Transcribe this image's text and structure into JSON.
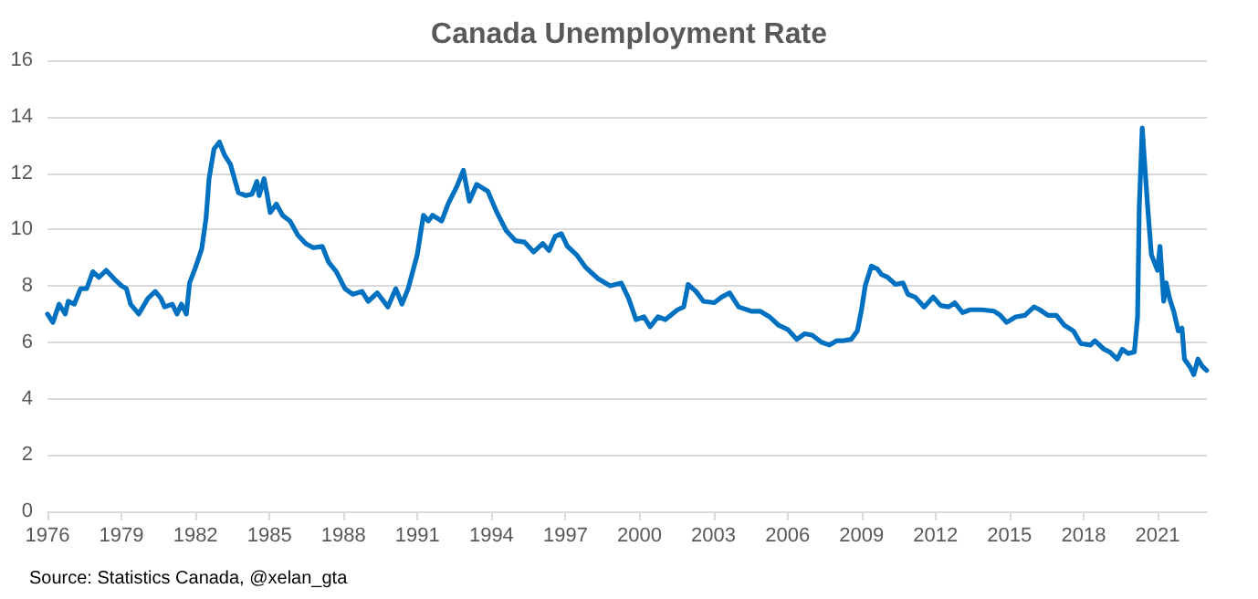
{
  "chart_data": {
    "type": "line",
    "title": "Canada Unemployment Rate",
    "annotations": [
      "Source: Statistics Canada, @xelan_gta"
    ],
    "x": [
      1976.0,
      1976.22,
      1976.47,
      1976.72,
      1976.84,
      1977.09,
      1977.34,
      1977.59,
      1977.84,
      1978.09,
      1978.38,
      1978.7,
      1979.0,
      1979.2,
      1979.37,
      1979.7,
      1980.07,
      1980.37,
      1980.6,
      1980.75,
      1981.06,
      1981.25,
      1981.43,
      1981.63,
      1981.76,
      1982.0,
      1982.25,
      1982.43,
      1982.55,
      1982.75,
      1982.97,
      1983.17,
      1983.42,
      1983.74,
      1984.04,
      1984.29,
      1984.49,
      1984.58,
      1984.78,
      1984.9,
      1985.03,
      1985.28,
      1985.53,
      1985.83,
      1986.15,
      1986.47,
      1986.77,
      1987.14,
      1987.39,
      1987.71,
      1988.06,
      1988.38,
      1988.75,
      1989.0,
      1989.37,
      1989.8,
      1990.12,
      1990.37,
      1990.62,
      1990.99,
      1991.24,
      1991.44,
      1991.61,
      1991.98,
      1992.24,
      1992.61,
      1992.86,
      1993.1,
      1993.4,
      1993.85,
      1994.22,
      1994.6,
      1994.97,
      1995.34,
      1995.71,
      1996.08,
      1996.33,
      1996.58,
      1996.83,
      1997.08,
      1997.45,
      1997.82,
      1998.32,
      1998.81,
      1999.26,
      1999.56,
      1999.86,
      2000.18,
      2000.43,
      2000.75,
      2001.05,
      2001.54,
      2001.79,
      2001.97,
      2002.29,
      2002.59,
      2003.03,
      2003.33,
      2003.65,
      2004.02,
      2004.52,
      2004.89,
      2005.27,
      2005.64,
      2006.01,
      2006.38,
      2006.7,
      2007.0,
      2007.37,
      2007.7,
      2007.99,
      2008.21,
      2008.58,
      2008.83,
      2009.0,
      2009.15,
      2009.4,
      2009.64,
      2009.81,
      2010.06,
      2010.38,
      2010.68,
      2010.88,
      2011.17,
      2011.54,
      2011.91,
      2012.21,
      2012.53,
      2012.78,
      2013.1,
      2013.4,
      2013.89,
      2014.38,
      2014.63,
      2014.88,
      2015.25,
      2015.62,
      2015.99,
      2016.23,
      2016.56,
      2016.9,
      2017.22,
      2017.59,
      2017.89,
      2018.28,
      2018.46,
      2018.83,
      2019.07,
      2019.37,
      2019.57,
      2019.81,
      2020.06,
      2020.19,
      2020.26,
      2020.38,
      2020.46,
      2020.6,
      2020.75,
      2021.0,
      2021.1,
      2021.25,
      2021.35,
      2021.49,
      2021.67,
      2021.84,
      2021.99,
      2022.09,
      2022.33,
      2022.47,
      2022.64,
      2022.81,
      2022.99
    ],
    "series": [
      {
        "color": "#0070c0",
        "values": [
          7.0,
          6.7,
          7.35,
          7.0,
          7.45,
          7.35,
          7.9,
          7.9,
          8.5,
          8.3,
          8.55,
          8.25,
          8.0,
          7.9,
          7.35,
          7.0,
          7.55,
          7.8,
          7.55,
          7.25,
          7.35,
          7.0,
          7.35,
          7.0,
          8.1,
          8.65,
          9.3,
          10.4,
          11.8,
          12.85,
          13.1,
          12.65,
          12.3,
          11.3,
          11.2,
          11.25,
          11.7,
          11.2,
          11.8,
          11.25,
          10.6,
          10.9,
          10.5,
          10.3,
          9.8,
          9.5,
          9.35,
          9.4,
          8.85,
          8.5,
          7.9,
          7.7,
          7.8,
          7.45,
          7.75,
          7.25,
          7.9,
          7.35,
          7.9,
          9.1,
          10.5,
          10.3,
          10.5,
          10.3,
          10.9,
          11.55,
          12.1,
          11.0,
          11.6,
          11.35,
          10.6,
          9.95,
          9.6,
          9.55,
          9.2,
          9.5,
          9.25,
          9.75,
          9.85,
          9.4,
          9.1,
          8.65,
          8.25,
          8.0,
          8.1,
          7.55,
          6.8,
          6.9,
          6.55,
          6.9,
          6.8,
          7.15,
          7.25,
          8.05,
          7.8,
          7.45,
          7.4,
          7.6,
          7.75,
          7.25,
          7.1,
          7.1,
          6.9,
          6.6,
          6.45,
          6.1,
          6.3,
          6.25,
          6.0,
          5.9,
          6.05,
          6.05,
          6.1,
          6.4,
          7.15,
          8.0,
          8.7,
          8.6,
          8.4,
          8.3,
          8.05,
          8.1,
          7.7,
          7.6,
          7.25,
          7.6,
          7.3,
          7.25,
          7.4,
          7.05,
          7.15,
          7.15,
          7.1,
          6.95,
          6.7,
          6.9,
          6.95,
          7.25,
          7.15,
          6.95,
          6.95,
          6.6,
          6.4,
          5.95,
          5.9,
          6.05,
          5.75,
          5.65,
          5.4,
          5.75,
          5.6,
          5.65,
          6.9,
          10.8,
          13.6,
          12.55,
          10.8,
          9.1,
          8.55,
          9.4,
          7.45,
          8.1,
          7.55,
          7.05,
          6.4,
          6.5,
          5.4,
          5.1,
          4.85,
          5.4,
          5.15,
          5.0
        ]
      }
    ],
    "xlim": [
      1976,
      2023
    ],
    "xticks": [
      1976,
      1979,
      1982,
      1985,
      1988,
      1991,
      1994,
      1997,
      2000,
      2003,
      2006,
      2009,
      2012,
      2015,
      2018,
      2021
    ],
    "ylim": [
      0,
      16
    ],
    "yticks": [
      0,
      2,
      4,
      6,
      8,
      10,
      12,
      14,
      16
    ],
    "grid": "y",
    "marker": "none",
    "line_style": "solid"
  }
}
